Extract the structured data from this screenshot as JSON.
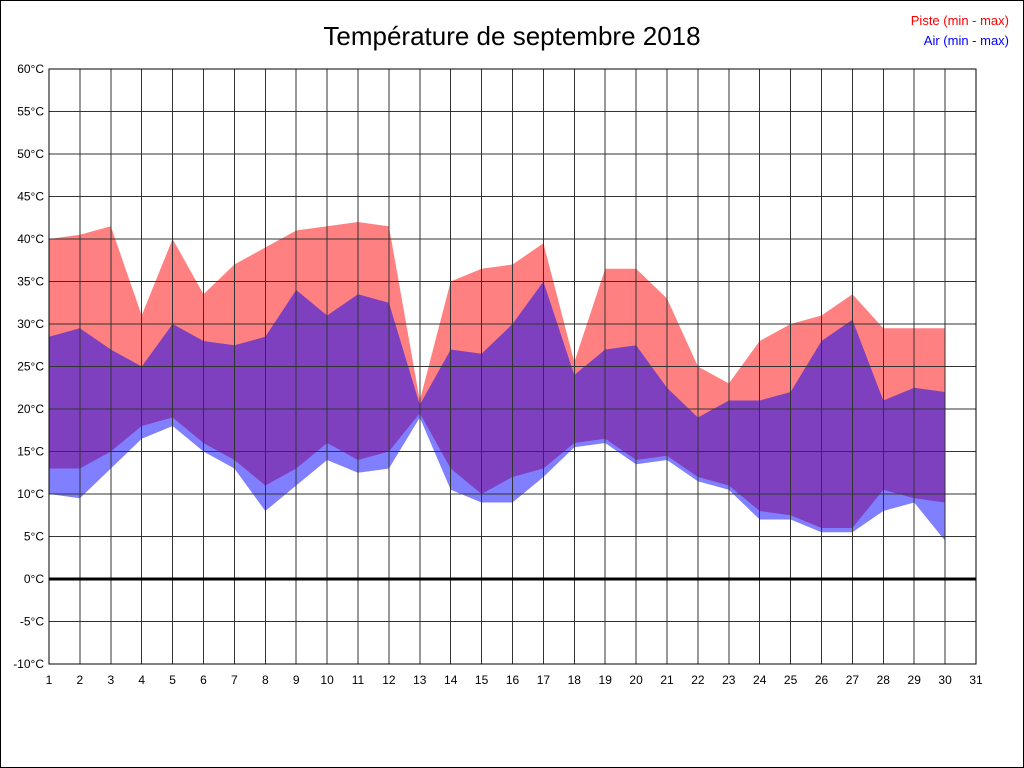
{
  "title": "Température de septembre 2018",
  "legend": [
    {
      "label": "Piste (min - max)",
      "color": "#ff0000"
    },
    {
      "label": "Air (min - max)",
      "color": "#0000ff"
    }
  ],
  "chart_data": {
    "type": "area",
    "subtype": "min-max-bands",
    "title": "Température de septembre 2018",
    "xlabel": "",
    "ylabel": "",
    "grid": true,
    "legend_position": "top-right",
    "xlim": [
      1,
      31
    ],
    "ylim": [
      -10,
      60
    ],
    "y_step": 5,
    "x": [
      1,
      2,
      3,
      4,
      5,
      6,
      7,
      8,
      9,
      10,
      11,
      12,
      13,
      14,
      15,
      16,
      17,
      18,
      19,
      20,
      21,
      22,
      23,
      24,
      25,
      26,
      27,
      28,
      29,
      30
    ],
    "x_tick_labels": [
      "1",
      "2",
      "3",
      "4",
      "5",
      "6",
      "7",
      "8",
      "9",
      "10",
      "11",
      "12",
      "13",
      "14",
      "15",
      "16",
      "17",
      "18",
      "19",
      "20",
      "21",
      "22",
      "23",
      "24",
      "25",
      "26",
      "27",
      "28",
      "29",
      "30",
      "31"
    ],
    "y_tick_labels": [
      "60°C",
      "55°C",
      "50°C",
      "45°C",
      "40°C",
      "35°C",
      "30°C",
      "25°C",
      "20°C",
      "15°C",
      "10°C",
      "5°C",
      "0°C",
      "-5°C",
      "-10°C"
    ],
    "series": [
      {
        "key": "piste_max",
        "name": "Piste max",
        "values": [
          40,
          40.5,
          41.5,
          31,
          40,
          33.5,
          37,
          39,
          41,
          41.5,
          42,
          41.5,
          21,
          35,
          36.5,
          37,
          39.5,
          25.5,
          36.5,
          36.5,
          33,
          25,
          23,
          28,
          30,
          31,
          33.5,
          29.5,
          29.5,
          29.5
        ]
      },
      {
        "key": "piste_min",
        "name": "Piste min",
        "values": [
          13,
          13,
          15,
          18,
          19,
          16,
          14,
          11,
          13,
          16,
          14,
          15,
          19.5,
          13,
          10,
          12,
          13,
          16,
          16.5,
          14,
          14.5,
          12,
          11,
          8,
          7.5,
          6,
          6,
          10.5,
          9.5,
          9
        ]
      },
      {
        "key": "air_max",
        "name": "Air max",
        "values": [
          28.5,
          29.5,
          27,
          25,
          30,
          28,
          27.5,
          28.5,
          34,
          31,
          33.5,
          32.5,
          20.5,
          27,
          26.5,
          30,
          35,
          24,
          27,
          27.5,
          22.5,
          19,
          21,
          21,
          22,
          28,
          30.5,
          21,
          22.5,
          22
        ]
      },
      {
        "key": "air_min",
        "name": "Air min",
        "values": [
          10,
          9.5,
          13,
          16.5,
          18,
          15,
          13,
          8,
          11,
          14,
          12.5,
          13,
          19,
          10.5,
          9,
          9,
          12,
          15.5,
          16,
          13.5,
          14,
          11.5,
          10.5,
          7,
          7,
          5.5,
          5.5,
          8,
          9,
          4.5
        ]
      }
    ],
    "style": {
      "piste_fill": "#ff8080",
      "piste_opacity": 1,
      "air_fill": "#0000ff",
      "air_opacity": 0.5,
      "grid_color": "#333333",
      "zero_line_color": "#000000",
      "border_color": "#000000",
      "tick_label_color": "#000000"
    }
  }
}
